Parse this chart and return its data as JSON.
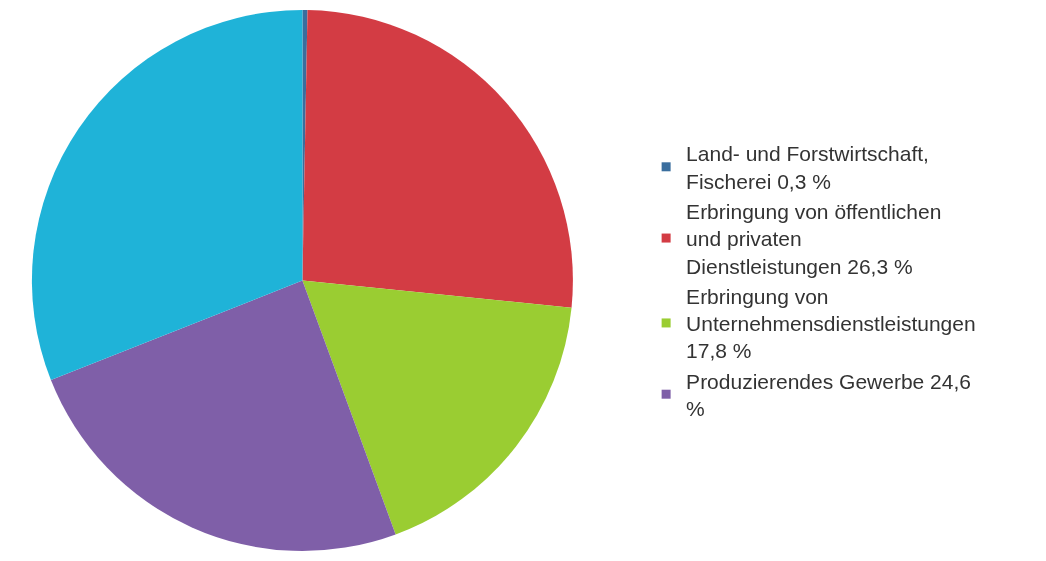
{
  "chart_data": {
    "type": "pie",
    "categories": [
      "Land- und Forstwirtschaft, Fischerei 0,3 %",
      "Erbringung von öffentlichen und privaten Dienstleistungen 26,3 %",
      "Erbringung von Unternehmensdienstleistungen 17,8 %",
      "Produzierendes Gewerbe 24,6 %",
      null
    ],
    "values": [
      0.3,
      26.3,
      17.8,
      24.6,
      31.0
    ],
    "colors": [
      "#3a6e9e",
      "#d33c44",
      "#9acd32",
      "#7f5fa8",
      "#1fb3d8"
    ],
    "legend": "right"
  }
}
